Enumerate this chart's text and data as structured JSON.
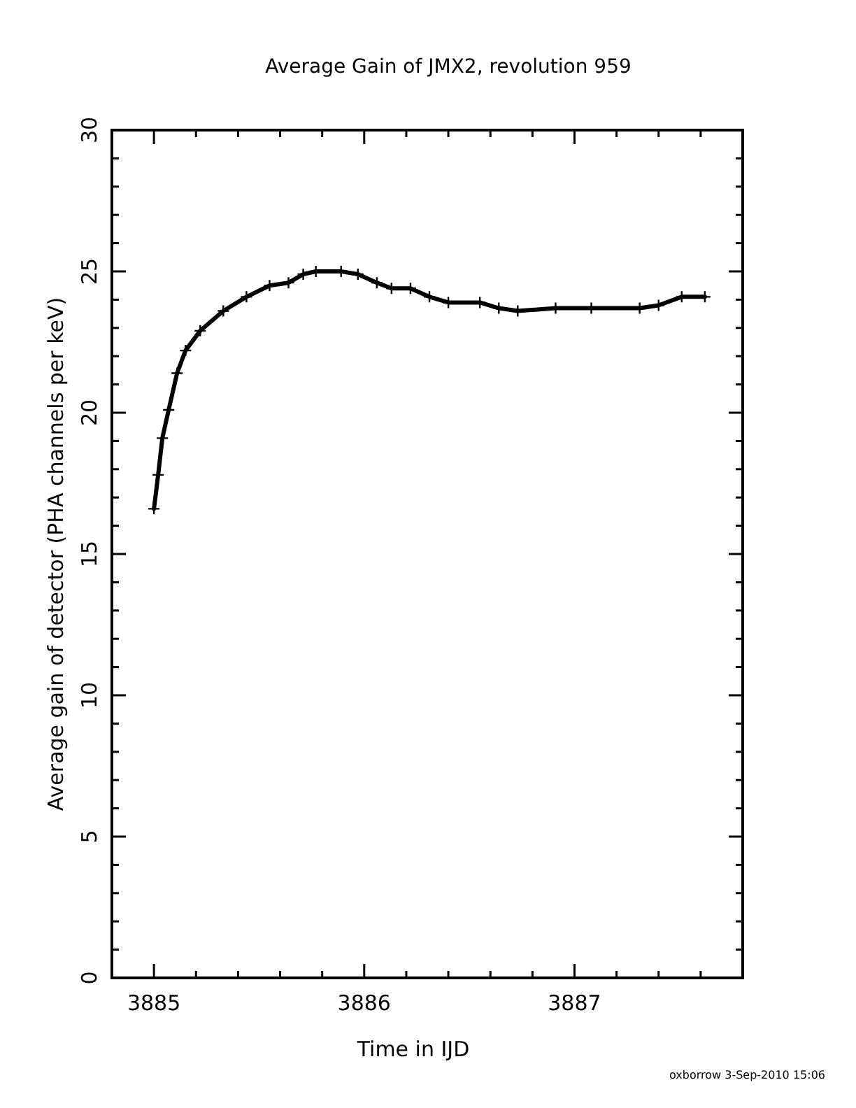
{
  "chart_data": {
    "type": "line",
    "title": "Average Gain of JMX2, revolution 959",
    "xlabel": "Time in IJD",
    "ylabel": "Average gain of detector (PHA channels per keV)",
    "annotations": [
      "oxborrow  3-Sep-2010 15:06"
    ],
    "x": [
      3885.0,
      3885.02,
      3885.04,
      3885.07,
      3885.11,
      3885.15,
      3885.22,
      3885.33,
      3885.44,
      3885.55,
      3885.64,
      3885.71,
      3885.77,
      3885.89,
      3885.97,
      3886.06,
      3886.13,
      3886.22,
      3886.31,
      3886.4,
      3886.55,
      3886.64,
      3886.73,
      3886.91,
      3887.08,
      3887.31,
      3887.4,
      3887.51,
      3887.62
    ],
    "series": [
      {
        "color": "#000000",
        "values": [
          16.6,
          17.8,
          19.1,
          20.1,
          21.4,
          22.2,
          22.9,
          23.6,
          24.1,
          24.5,
          24.6,
          24.9,
          25.0,
          25.0,
          24.9,
          24.6,
          24.4,
          24.4,
          24.1,
          23.9,
          23.9,
          23.7,
          23.6,
          23.7,
          23.7,
          23.7,
          23.8,
          24.1,
          24.1
        ]
      }
    ],
    "xlim": [
      3884.8,
      3887.8
    ],
    "xticks": [
      3885,
      {
        "value": 3885.2,
        "label": null
      },
      {
        "value": 3885.4,
        "label": null
      },
      {
        "value": 3885.6,
        "label": null
      },
      {
        "value": 3885.8,
        "label": null
      },
      3886,
      {
        "value": 3886.2,
        "label": null
      },
      {
        "value": 3886.4,
        "label": null
      },
      {
        "value": 3886.6,
        "label": null
      },
      {
        "value": 3886.8,
        "label": null
      },
      3887,
      {
        "value": 3887.2,
        "label": null
      },
      {
        "value": 3887.4,
        "label": null
      },
      {
        "value": 3887.6,
        "label": null
      }
    ],
    "ylim": [
      0,
      30
    ],
    "yticks": [
      0,
      {
        "value": 1,
        "label": null
      },
      {
        "value": 2,
        "label": null
      },
      {
        "value": 3,
        "label": null
      },
      {
        "value": 4,
        "label": null
      },
      5,
      {
        "value": 6,
        "label": null
      },
      {
        "value": 7,
        "label": null
      },
      {
        "value": 8,
        "label": null
      },
      {
        "value": 9,
        "label": null
      },
      10,
      {
        "value": 11,
        "label": null
      },
      {
        "value": 12,
        "label": null
      },
      {
        "value": 13,
        "label": null
      },
      {
        "value": 14,
        "label": null
      },
      15,
      {
        "value": 16,
        "label": null
      },
      {
        "value": 17,
        "label": null
      },
      {
        "value": 18,
        "label": null
      },
      {
        "value": 19,
        "label": null
      },
      20,
      {
        "value": 21,
        "label": null
      },
      {
        "value": 22,
        "label": null
      },
      {
        "value": 23,
        "label": null
      },
      {
        "value": 24,
        "label": null
      },
      25,
      {
        "value": 26,
        "label": null
      },
      {
        "value": 27,
        "label": null
      },
      {
        "value": 28,
        "label": null
      },
      {
        "value": 29,
        "label": null
      },
      30
    ],
    "grid": false,
    "marker": "cross",
    "line_style": "solid"
  }
}
